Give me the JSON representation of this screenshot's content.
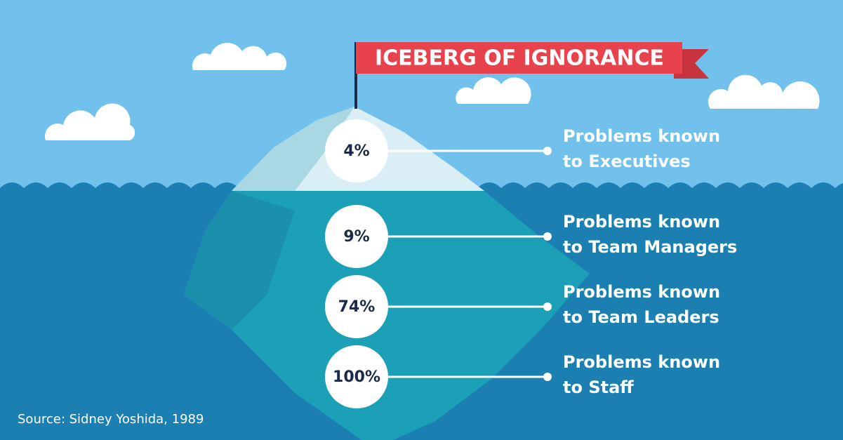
{
  "title": "ICEBERG OF IGNORANCE",
  "items": [
    {
      "value": "4%",
      "label": [
        "Problems known",
        "to Executives"
      ]
    },
    {
      "value": "9%",
      "label": [
        "Problems known",
        "to Team Managers"
      ]
    },
    {
      "value": "74%",
      "label": [
        "Problems known",
        "to Team Leaders"
      ]
    },
    {
      "value": "100%",
      "label": [
        "Problems known",
        "to Staff"
      ]
    }
  ],
  "source": "Source: Sidney Yoshida, 1989"
}
